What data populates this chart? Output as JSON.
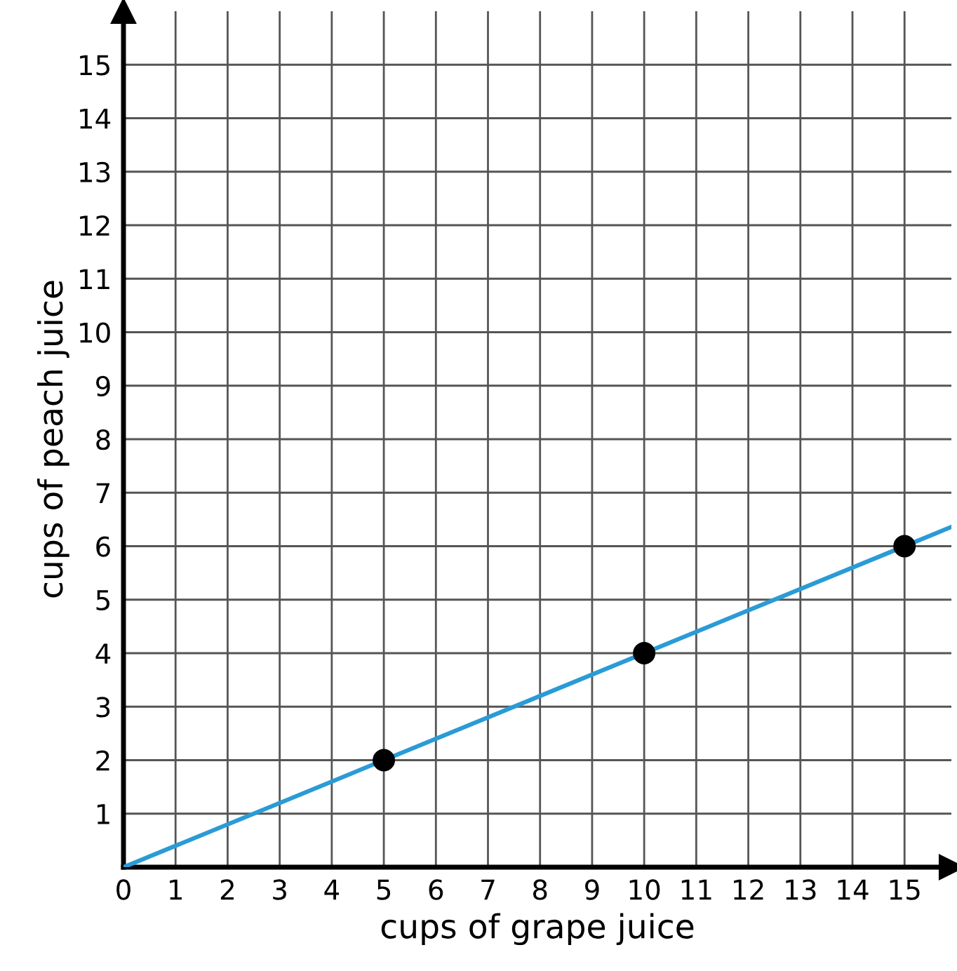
{
  "chart_data": {
    "type": "line",
    "xlabel": "cups of grape juice",
    "ylabel": "cups of peach juice",
    "series": [
      {
        "color": "#2a9bd6",
        "x": [
          0,
          15.9
        ],
        "values": [
          0,
          6.36
        ],
        "marker": "none",
        "line_style": "solid"
      },
      {
        "type": "scatter",
        "color": "#000000",
        "x": [
          5,
          10,
          15
        ],
        "values": [
          2,
          4,
          6
        ],
        "marker": "circle"
      }
    ],
    "xlim": [
      0,
      15.9
    ],
    "ylim": [
      0,
      16
    ],
    "xticks": [
      0,
      1,
      2,
      3,
      4,
      5,
      6,
      7,
      8,
      9,
      10,
      11,
      12,
      13,
      14,
      15
    ],
    "yticks": [
      {
        "value": 0,
        "label": null
      },
      1,
      2,
      3,
      4,
      5,
      6,
      7,
      8,
      9,
      10,
      11,
      12,
      13,
      14,
      15
    ],
    "grid": true,
    "legend": false
  }
}
